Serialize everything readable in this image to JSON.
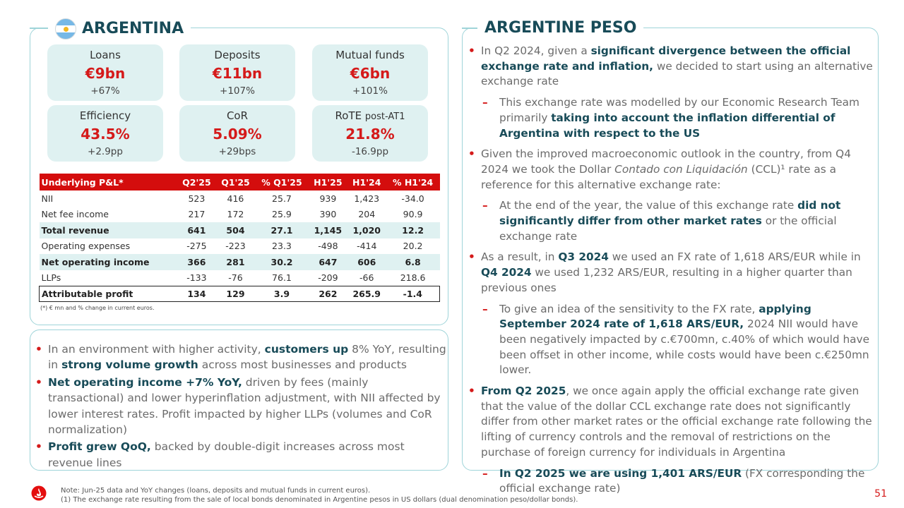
{
  "left_title": "ARGENTINA",
  "right_title": "ARGENTINE PESO",
  "kpis": [
    {
      "label": "Loans",
      "label_sub": "",
      "value": "€9bn",
      "change": "+67%"
    },
    {
      "label": "Deposits",
      "label_sub": "",
      "value": "€11bn",
      "change": "+107%"
    },
    {
      "label": "Mutual funds",
      "label_sub": "",
      "value": "€6bn",
      "change": "+101%"
    },
    {
      "label": "Efficiency",
      "label_sub": "",
      "value": "43.5%",
      "change": "+2.9pp"
    },
    {
      "label": "CoR",
      "label_sub": "",
      "value": "5.09%",
      "change": "+29bps"
    },
    {
      "label": "RoTE",
      "label_sub": "post-AT1",
      "value": "21.8%",
      "change": "-16.9pp"
    }
  ],
  "pl_table": {
    "headers": [
      "Underlying P&L*",
      "Q2'25",
      "Q1'25",
      "% Q1'25",
      "H1'25",
      "H1'24",
      "% H1'24"
    ],
    "rows": [
      [
        "NII",
        "523",
        "416",
        "25.7",
        "939",
        "1,423",
        "-34.0"
      ],
      [
        "Net fee income",
        "217",
        "172",
        "25.9",
        "390",
        "204",
        "90.9"
      ],
      [
        "Total revenue",
        "641",
        "504",
        "27.1",
        "1,145",
        "1,020",
        "12.2"
      ],
      [
        "Operating expenses",
        "-275",
        "-223",
        "23.3",
        "-498",
        "-414",
        "20.2"
      ],
      [
        "Net operating income",
        "366",
        "281",
        "30.2",
        "647",
        "606",
        "6.8"
      ],
      [
        "LLPs",
        "-133",
        "-76",
        "76.1",
        "-209",
        "-66",
        "218.6"
      ],
      [
        "Attributable profit",
        "134",
        "129",
        "3.9",
        "262",
        "265.9",
        "-1.4"
      ]
    ],
    "note": "(*) € mn and % change in current euros."
  },
  "left_bullets": [
    [
      {
        "t": "In an environment with higher activity, "
      },
      {
        "t": "customers up",
        "b": true
      },
      {
        "t": " 8% YoY, resulting in "
      },
      {
        "t": "strong volume growth",
        "b": true
      },
      {
        "t": " across most businesses and products"
      }
    ],
    [
      {
        "t": "Net operating income +7% YoY,",
        "b": true
      },
      {
        "t": " driven by fees (mainly transactional) and lower hyperinflation adjustment, with NII affected by lower interest rates. Profit impacted by higher LLPs (volumes and CoR normalization)"
      }
    ],
    [
      {
        "t": "Profit grew QoQ,",
        "b": true
      },
      {
        "t": " backed by double-digit increases across most revenue lines"
      }
    ]
  ],
  "right_bullets": [
    {
      "level": 1,
      "parts": [
        {
          "t": "In Q2 2024, given a "
        },
        {
          "t": "significant divergence between the official exchange rate and inflation,",
          "b": true
        },
        {
          "t": " we decided to start using an alternative exchange rate"
        }
      ]
    },
    {
      "level": 2,
      "parts": [
        {
          "t": "This exchange rate was modelled by our Economic Research Team primarily "
        },
        {
          "t": "taking into account the inflation differential of Argentina with respect to the US",
          "b": true
        }
      ]
    },
    {
      "level": 1,
      "parts": [
        {
          "t": "Given the improved macroeconomic outlook in the country, from Q4 2024 we took the Dollar "
        },
        {
          "t": "Contado con Liquidación",
          "i": true
        },
        {
          "t": " (CCL)¹ rate as a reference for this alternative exchange rate:"
        }
      ]
    },
    {
      "level": 2,
      "parts": [
        {
          "t": "At the end of the year, the value of this exchange rate "
        },
        {
          "t": "did not significantly differ from other market rates",
          "b": true
        },
        {
          "t": " or the official exchange rate"
        }
      ]
    },
    {
      "level": 1,
      "parts": [
        {
          "t": "As a result, in "
        },
        {
          "t": "Q3 2024",
          "b": true
        },
        {
          "t": " we used an FX rate of 1,618 ARS/EUR while in "
        },
        {
          "t": "Q4 2024",
          "b": true
        },
        {
          "t": " we used 1,232 ARS/EUR, resulting in a higher quarter than previous ones"
        }
      ]
    },
    {
      "level": 2,
      "parts": [
        {
          "t": "To give an idea of the sensitivity to the FX rate, "
        },
        {
          "t": "applying September 2024 rate of 1,618 ARS/EUR,",
          "b": true
        },
        {
          "t": " 2024 NII would have been negatively impacted by c.€700mn, c.40% of which would have been offset in other income, while costs would have been c.€250mn lower."
        }
      ]
    },
    {
      "level": 1,
      "parts": [
        {
          "t": "From Q2 2025",
          "b": true
        },
        {
          "t": ", we once again apply the official exchange rate given that the value of the dollar CCL exchange rate does not significantly differ from other market rates or the official exchange rate following the lifting of currency controls and the removal of restrictions on the purchase of foreign currency for individuals in Argentina"
        }
      ]
    },
    {
      "level": 2,
      "parts": [
        {
          "t": "In Q2 2025 we are using 1,401 ARS/EUR",
          "b": true
        },
        {
          "t": " (FX corresponding the official exchange rate)"
        }
      ]
    }
  ],
  "footnote_1": "Note: Jun-25 data and YoY changes (loans, deposits and mutual funds in current euros).",
  "footnote_2": "(1) The exchange rate resulting from the sale of local bonds denominated in Argentine pesos in US dollars (dual denomination peso/dollar bonds).",
  "page_number": "51",
  "colors": {
    "accent": "#d51a1a",
    "teal_dark": "#184b58",
    "teal_light": "#dff1f1",
    "frame": "#9fd4d9"
  },
  "icons": {
    "flag": "argentina-flag-icon",
    "logo": "santander-flame-logo"
  }
}
